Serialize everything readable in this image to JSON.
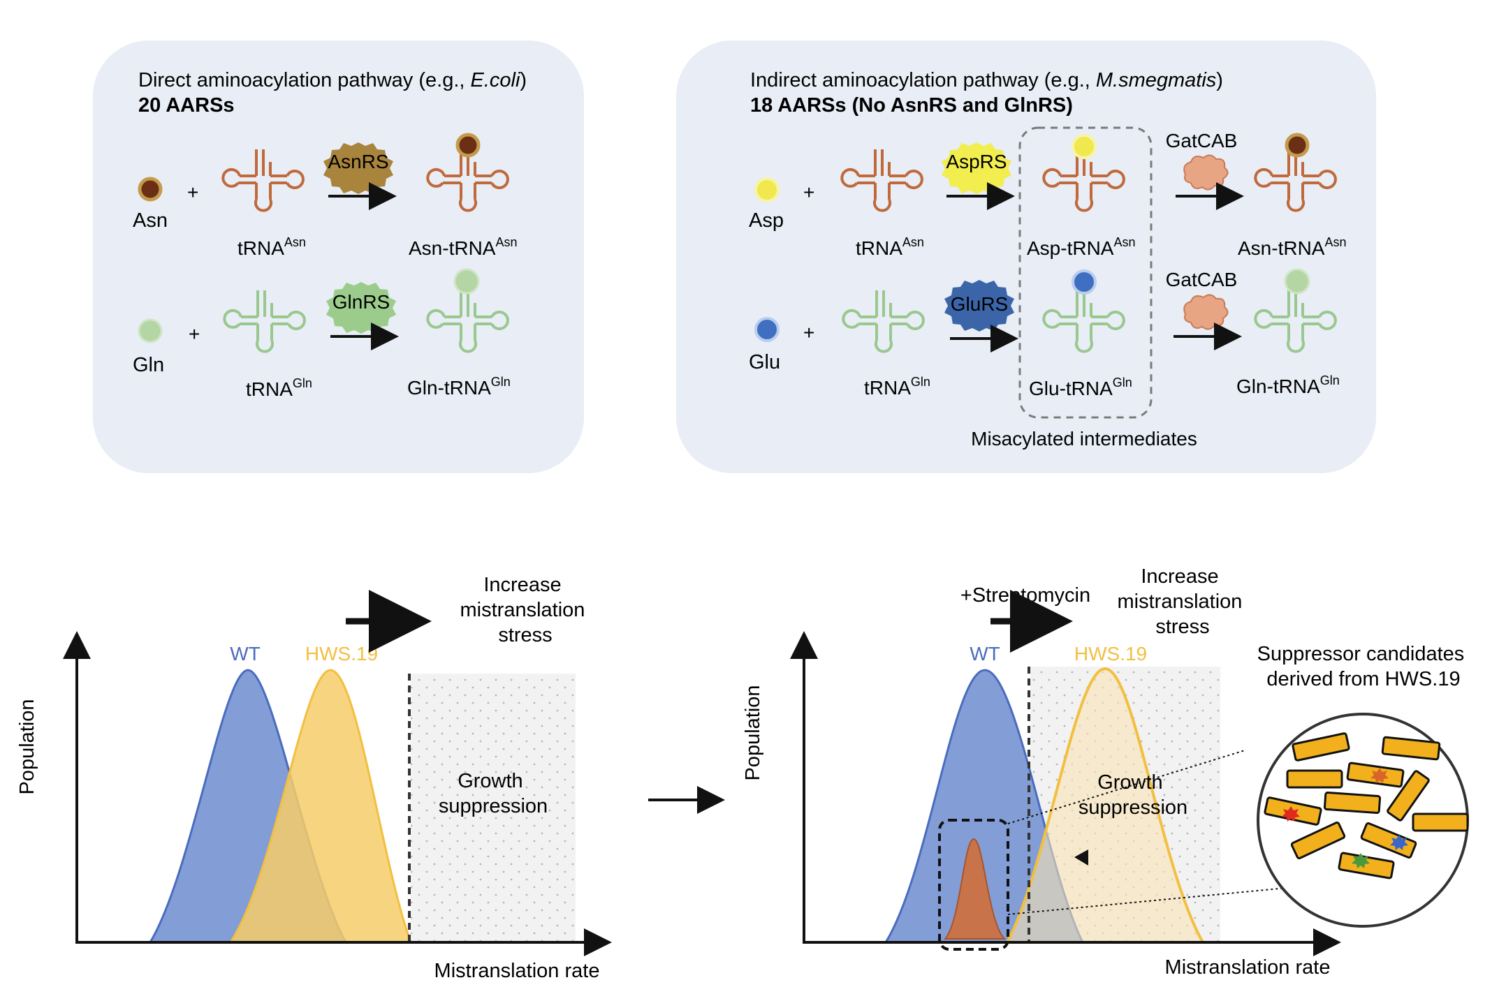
{
  "panel_direct": {
    "title_prefix": "Direct aminoacylation pathway (e.g., ",
    "title_organism": "E.coli",
    "title_suffix": ")",
    "subtitle": "20 AARSs",
    "plus": "+",
    "row_asn": {
      "amino_acid": "Asn",
      "trna_base": "tRNA",
      "trna_sup": "Asn",
      "enzyme": "AsnRS",
      "product_base": "Asn-tRNA",
      "product_sup": "Asn"
    },
    "row_gln": {
      "amino_acid": "Gln",
      "trna_base": "tRNA",
      "trna_sup": "Gln",
      "enzyme": "GlnRS",
      "product_base": "Gln-tRNA",
      "product_sup": "Gln"
    }
  },
  "panel_indirect": {
    "title_prefix": "Indirect aminoacylation pathway (e.g., ",
    "title_organism": "M.smegmatis",
    "title_suffix": ")",
    "subtitle": "18 AARSs (No AsnRS and GlnRS)",
    "plus": "+",
    "row_asp": {
      "amino_acid": "Asp",
      "trna_base": "tRNA",
      "trna_sup": "Asn",
      "enzyme": "AspRS",
      "intermediate_base": "Asp-tRNA",
      "intermediate_sup": "Asn",
      "second_enzyme": "GatCAB",
      "product_base": "Asn-tRNA",
      "product_sup": "Asn"
    },
    "row_glu": {
      "amino_acid": "Glu",
      "trna_base": "tRNA",
      "trna_sup": "Gln",
      "enzyme": "GluRS",
      "intermediate_base": "Glu-tRNA",
      "intermediate_sup": "Gln",
      "second_enzyme": "GatCAB",
      "product_base": "Gln-tRNA",
      "product_sup": "Gln"
    },
    "box_caption": "Misacylated intermediates"
  },
  "plot_left": {
    "y_label": "Population",
    "x_label": "Mistranslation rate",
    "series_wt": "WT",
    "series_hws": "HWS.19",
    "stress_lines": [
      "Increase",
      "mistranslation",
      "stress"
    ],
    "region_lines": [
      "Growth",
      "suppression"
    ]
  },
  "plot_right": {
    "y_label": "Population",
    "x_label": "Mistranslation rate",
    "series_wt": "WT",
    "series_hws": "HWS.19",
    "treatment": "+Streptomycin",
    "stress_lines": [
      "Increase",
      "mistranslation",
      "stress"
    ],
    "region_lines": [
      "Growth",
      "suppression"
    ],
    "candidates_lines": [
      "Suppressor candidates",
      "derived from HWS.19"
    ]
  },
  "colors": {
    "panel_bg": "#e8edf6",
    "trna_asn": "#c0693a",
    "trna_gln": "#99c88e",
    "asn": "#6b2f16",
    "gln": "#b3d6a4",
    "asp": "#f0e84c",
    "glu": "#3f6fc0",
    "asnrs": "#a8843c",
    "glnrs": "#9ccc8c",
    "asprs": "#f2ee50",
    "glurs": "#3b65a8",
    "gatcab": "#e8a583",
    "wt": "#7c98d4",
    "hws": "#f6cd68",
    "wt_stroke": "#4a6cbe",
    "hws_stroke": "#f2bf40",
    "suppressor": "#c8734a",
    "bacteria": "#f2b11c"
  }
}
